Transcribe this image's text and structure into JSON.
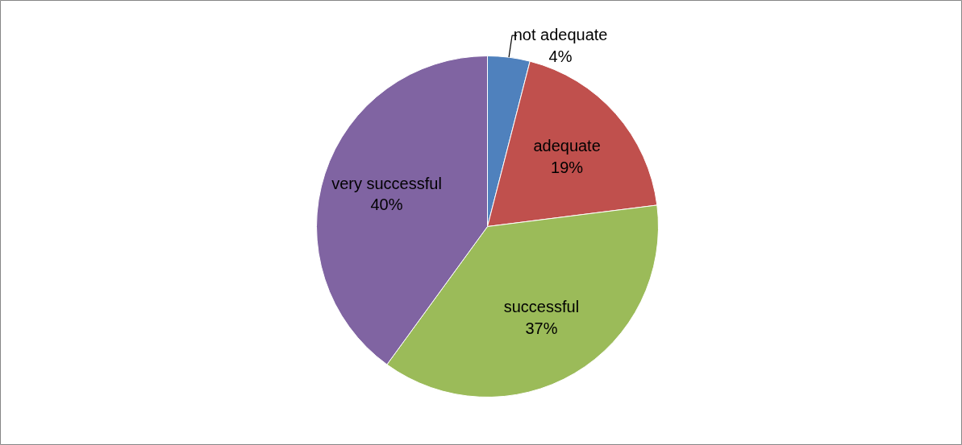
{
  "chart_data": {
    "type": "pie",
    "categories": [
      "not adequate",
      "adequate",
      "successful",
      "very successful"
    ],
    "values": [
      4,
      19,
      37,
      40
    ],
    "value_labels": [
      "4%",
      "19%",
      "37%",
      "40%"
    ],
    "colors": [
      "#4f81bd",
      "#c0504d",
      "#9bbb59",
      "#8064a2"
    ]
  }
}
